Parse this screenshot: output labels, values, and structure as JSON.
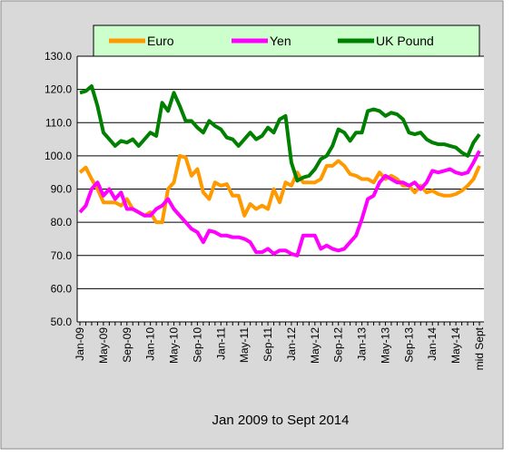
{
  "chart_data": {
    "type": "line",
    "xlabel": "Jan 2009 to Sept 2014",
    "categories": [
      "Jan-09",
      null,
      null,
      null,
      "May-09",
      null,
      null,
      null,
      "Sep-09",
      null,
      null,
      null,
      "Jan-10",
      null,
      null,
      null,
      "May-10",
      null,
      null,
      null,
      "Sep-10",
      null,
      null,
      null,
      "Jan-11",
      null,
      null,
      null,
      "May-11",
      null,
      null,
      null,
      "Sep-11",
      null,
      null,
      null,
      "Jan-12",
      null,
      null,
      null,
      "May-12",
      null,
      null,
      null,
      "Sep-12",
      null,
      null,
      null,
      "Jan-13",
      null,
      null,
      null,
      "May-13",
      null,
      null,
      null,
      "Sep-13",
      null,
      null,
      null,
      "Jan-14",
      null,
      null,
      null,
      "May-14",
      null,
      null,
      null,
      "mid Sept"
    ],
    "series": [
      {
        "name": "Euro",
        "color": "#ff9900",
        "values": [
          95,
          96.5,
          93,
          90,
          86,
          86,
          86,
          85,
          87,
          84,
          83,
          82,
          83,
          80,
          80,
          90,
          92,
          100,
          99.5,
          94,
          96,
          89,
          87,
          92,
          91,
          91.5,
          88,
          88,
          82,
          85.5,
          84,
          85,
          84,
          90,
          86,
          92,
          91,
          95,
          92,
          92,
          92,
          93,
          97,
          97,
          98.5,
          97,
          94.5,
          94,
          93,
          93,
          92,
          95,
          93,
          94,
          93,
          91,
          91,
          89,
          91,
          89,
          89.5,
          88.5,
          88,
          88,
          88.5,
          89.5,
          91,
          93,
          97
        ]
      },
      {
        "name": "Yen",
        "color": "#ff00ff",
        "values": [
          83,
          85,
          90,
          92,
          88,
          90,
          87,
          89,
          84,
          84,
          83,
          82,
          82,
          84,
          85,
          87,
          84,
          82,
          80,
          78,
          77,
          74,
          77.5,
          77,
          76,
          76,
          75.5,
          75.5,
          75,
          74,
          71,
          71,
          72,
          70.5,
          71.5,
          71.5,
          70.5,
          70,
          76,
          76,
          76,
          72,
          73,
          72,
          71.5,
          72,
          74,
          76,
          81,
          87,
          88,
          92,
          94,
          93,
          92,
          92,
          91,
          92,
          90,
          92,
          95.5,
          95,
          95.5,
          96,
          95,
          94.5,
          95,
          98,
          101.5
        ]
      },
      {
        "name": "UK Pound",
        "color": "#008000",
        "values": [
          119,
          119.5,
          121,
          115,
          107,
          105,
          103,
          104.5,
          104,
          105,
          103,
          105,
          107,
          106,
          116,
          113.5,
          119,
          115,
          110.5,
          110.5,
          108.5,
          107,
          110.5,
          109,
          108,
          105.5,
          105,
          103,
          105,
          107,
          105,
          106,
          108.5,
          107,
          111,
          112,
          98,
          92.5,
          93.5,
          94,
          96,
          99,
          100,
          103,
          108,
          107,
          104.5,
          107,
          107,
          113.5,
          114,
          113.5,
          112,
          113,
          112.5,
          111,
          107,
          106.5,
          107,
          105,
          104,
          103.5,
          103.5,
          103,
          102.5,
          101,
          100,
          104,
          106.5
        ]
      }
    ],
    "ylim": [
      50,
      130
    ],
    "yticks": [
      {
        "value": 50,
        "label": "50.0"
      },
      {
        "value": 60,
        "label": "60.0"
      },
      {
        "value": 70,
        "label": "70.0"
      },
      {
        "value": 80,
        "label": "80.0"
      },
      {
        "value": 90,
        "label": "90.0"
      },
      {
        "value": 100,
        "label": "100.0"
      },
      {
        "value": 110,
        "label": "110.0"
      },
      {
        "value": 120,
        "label": "120.0"
      },
      {
        "value": 130,
        "label": "130.0"
      }
    ],
    "grid": true
  }
}
